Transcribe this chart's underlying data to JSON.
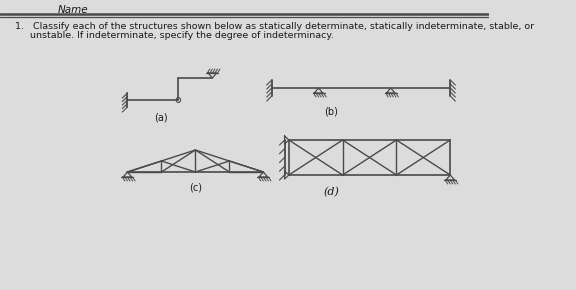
{
  "bg_color": "#dcdcdc",
  "line_color": "#4a4a4a",
  "text_color": "#1a1a1a",
  "fontsize_q": 6.8,
  "fontsize_label": 7.0,
  "label_a": "(a)",
  "label_b": "(b)",
  "label_c": "(c)",
  "label_d": "(d)",
  "question_line1": "1.   Classify each of the structures shown below as statically determinate, statically indeterminate, stable, or",
  "question_line2": "     unstable. If indeterminate, specify the degree of indeterminacy."
}
